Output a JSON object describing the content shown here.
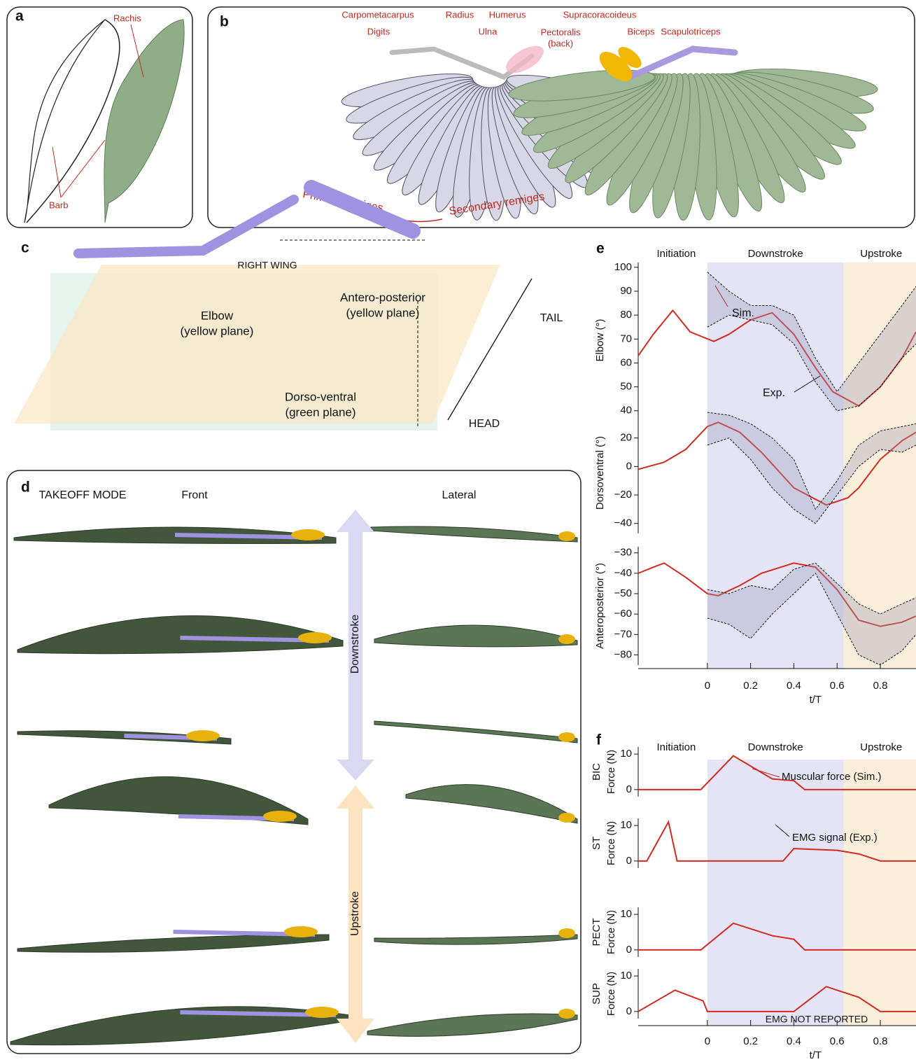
{
  "panels": {
    "a": {
      "letter": "a",
      "rachis": "Rachis",
      "barb": "Barb"
    },
    "b": {
      "letter": "b",
      "labels": {
        "carpometacarpus": "Carpometacarpus",
        "digits": "Digits",
        "radius": "Radius",
        "ulna": "Ulna",
        "humerus": "Humerus",
        "pectoralis": [
          "Pectoralis",
          "(back)"
        ],
        "supracoracoideus": "Supracoracoideus",
        "biceps": "Biceps",
        "scapulotriceps": "Scapulotriceps",
        "primary": "Primary remiges",
        "secondary": "Secondary remiges"
      }
    },
    "c": {
      "letter": "c",
      "title": "RIGHT WING",
      "elbow": [
        "Elbow",
        "(yellow plane)"
      ],
      "antero": [
        "Antero-posterior",
        "(yellow plane)"
      ],
      "dorso": [
        "Dorso-ventral",
        "(green plane)"
      ],
      "tail": "TAIL",
      "head": "HEAD"
    },
    "d": {
      "letter": "d",
      "mode": "TAKEOFF MODE",
      "front": "Front",
      "lateral": "Lateral",
      "downstroke": "Downstroke",
      "upstroke": "Upstroke"
    }
  },
  "chart_data": [
    {
      "type": "line",
      "panel": "e",
      "phases": [
        "Initiation",
        "Downstroke",
        "Upstroke"
      ],
      "phase_edges": [
        0,
        0.63
      ],
      "phase_colors": [
        "#e4e4f6",
        "#fbefdb"
      ],
      "xlabel": "t/T",
      "xlim": [
        -0.32,
        0.965
      ],
      "xticks": [
        0,
        0.2,
        0.4,
        0.6,
        0.8
      ],
      "subplots": [
        {
          "ylabel": "Elbow (°)",
          "ylim": [
            37,
            102
          ],
          "yticks": [
            40,
            50,
            60,
            70,
            80,
            90,
            100
          ],
          "series": [
            {
              "name": "Sim.",
              "color": "#d42a20",
              "x": [
                -0.32,
                -0.25,
                -0.16,
                -0.08,
                0.03,
                0.1,
                0.2,
                0.3,
                0.4,
                0.5,
                0.58,
                0.7,
                0.8,
                0.9,
                0.965
              ],
              "values": [
                63,
                72,
                82,
                73,
                69,
                72,
                78,
                81,
                72,
                58,
                48,
                42,
                50,
                62,
                73
              ]
            },
            {
              "name": "Exp.",
              "color": "#9a9ab8",
              "x": [
                0,
                0.1,
                0.2,
                0.3,
                0.4,
                0.5,
                0.6,
                0.7,
                0.8,
                0.9,
                0.965
              ],
              "lower": [
                75,
                80,
                78,
                76,
                68,
                52,
                40,
                42,
                50,
                62,
                68
              ],
              "upper": [
                98,
                90,
                84,
                84,
                80,
                62,
                48,
                60,
                72,
                84,
                92
              ]
            }
          ]
        },
        {
          "ylabel": "Dorsoventral (°)",
          "ylim": [
            -47,
            38
          ],
          "yticks": [
            {
              "value": -40,
              "label": "−40"
            },
            {
              "value": -20,
              "label": "−20"
            },
            0,
            20
          ],
          "series": [
            {
              "color": "#d42a20",
              "x": [
                -0.32,
                -0.2,
                -0.1,
                0,
                0.05,
                0.15,
                0.25,
                0.4,
                0.55,
                0.65,
                0.7,
                0.8,
                0.9,
                0.965
              ],
              "values": [
                -2,
                3,
                12,
                28,
                31,
                24,
                10,
                -15,
                -27,
                -22,
                -15,
                5,
                18,
                24
              ]
            },
            {
              "color": "#9a9ab8",
              "x": [
                0,
                0.1,
                0.2,
                0.3,
                0.4,
                0.5,
                0.6,
                0.7,
                0.8,
                0.9,
                0.965
              ],
              "lower": [
                15,
                20,
                5,
                -15,
                -30,
                -40,
                -20,
                0,
                12,
                10,
                15
              ],
              "upper": [
                38,
                36,
                30,
                20,
                5,
                -30,
                -10,
                15,
                25,
                28,
                30
              ]
            }
          ]
        },
        {
          "ylabel": "Anteroposterior (°)",
          "ylim": [
            -85,
            -27
          ],
          "yticks": [
            {
              "value": -80,
              "label": "−80"
            },
            {
              "value": -70,
              "label": "−70"
            },
            {
              "value": -60,
              "label": "−60"
            },
            {
              "value": -50,
              "label": "−50"
            },
            {
              "value": -40,
              "label": "−40"
            },
            {
              "value": -30,
              "label": "−30"
            }
          ],
          "series": [
            {
              "color": "#d42a20",
              "x": [
                -0.32,
                -0.25,
                -0.2,
                -0.1,
                0,
                0.05,
                0.15,
                0.25,
                0.4,
                0.5,
                0.6,
                0.7,
                0.8,
                0.9,
                0.965
              ],
              "values": [
                -40,
                -37,
                -35,
                -42,
                -50,
                -51,
                -46,
                -40,
                -35,
                -37,
                -48,
                -63,
                -66,
                -64,
                -61
              ]
            },
            {
              "color": "#9a9ab8",
              "x": [
                0,
                0.1,
                0.2,
                0.3,
                0.4,
                0.5,
                0.6,
                0.7,
                0.8,
                0.9,
                0.965
              ],
              "lower": [
                -62,
                -65,
                -72,
                -60,
                -50,
                -40,
                -60,
                -80,
                -85,
                -78,
                -70
              ],
              "upper": [
                -48,
                -50,
                -46,
                -48,
                -38,
                -35,
                -45,
                -55,
                -60,
                -55,
                -52
              ]
            }
          ]
        }
      ]
    },
    {
      "type": "line",
      "panel": "f",
      "phases": [
        "Initiation",
        "Downstroke",
        "Upstroke"
      ],
      "phase_edges": [
        0,
        0.63
      ],
      "phase_colors": [
        "#e4e4f6",
        "#fbefdb"
      ],
      "xlabel": "t/T",
      "xlim": [
        -0.32,
        0.965
      ],
      "xticks": [
        0,
        0.2,
        0.4,
        0.6,
        0.8
      ],
      "annotations": [
        "EMG signal (Exp.)",
        "EMG NOT REPORTED"
      ],
      "subplots": [
        {
          "ylabel": [
            "BIC",
            "Force (N)"
          ],
          "ylim": [
            -2,
            12
          ],
          "yticks": [
            0,
            10
          ],
          "series": [
            {
              "name": "Muscular force (Sim.)",
              "color": "#d42a20",
              "x": [
                -0.32,
                -0.03,
                0.12,
                0.3,
                0.4,
                0.45,
                0.965
              ],
              "values": [
                0,
                0,
                9.5,
                3,
                2.5,
                0,
                0
              ]
            }
          ]
        },
        {
          "ylabel": [
            "ST",
            "Force (N)"
          ],
          "ylim": [
            -2,
            12
          ],
          "yticks": [
            0,
            10
          ],
          "series": [
            {
              "color": "#d42a20",
              "x": [
                -0.32,
                -0.28,
                -0.18,
                -0.14,
                0.35,
                0.4,
                0.6,
                0.7,
                0.8,
                0.965
              ],
              "values": [
                0,
                0,
                11,
                0,
                0,
                3.5,
                3,
                2,
                0,
                0
              ]
            }
          ]
        },
        {
          "ylabel": [
            "PECT",
            "Force (N)"
          ],
          "ylim": [
            -2,
            12
          ],
          "yticks": [
            0,
            10
          ],
          "series": [
            {
              "color": "#d42a20",
              "x": [
                -0.32,
                -0.03,
                0.12,
                0.3,
                0.4,
                0.45,
                0.965
              ],
              "values": [
                0,
                0,
                7.5,
                4,
                3,
                0,
                0
              ]
            }
          ]
        },
        {
          "ylabel": [
            "SUP",
            "Force (N)"
          ],
          "ylim": [
            -2,
            12
          ],
          "yticks": [
            0,
            10
          ],
          "series": [
            {
              "color": "#d42a20",
              "x": [
                -0.32,
                -0.15,
                -0.02,
                0,
                0.4,
                0.55,
                0.7,
                0.8,
                0.965
              ],
              "values": [
                0,
                6,
                3,
                0,
                0,
                7,
                4,
                0,
                0
              ]
            }
          ]
        }
      ]
    }
  ]
}
